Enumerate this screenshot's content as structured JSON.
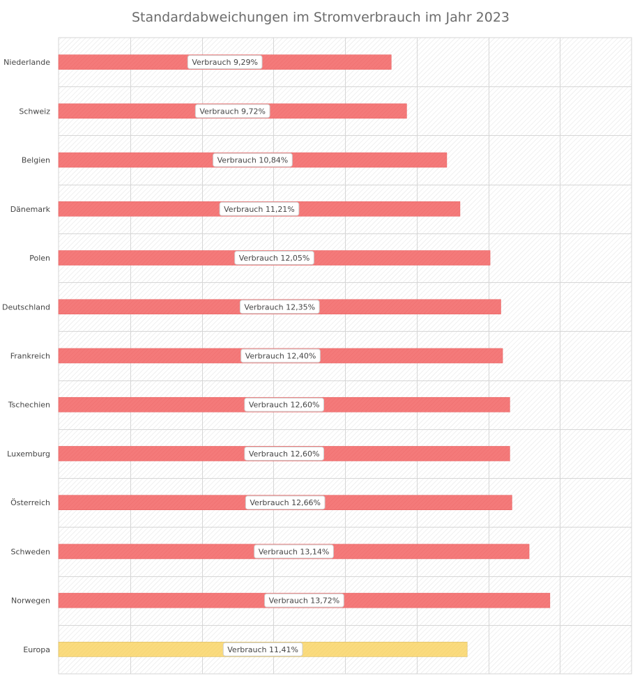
{
  "chart_data": {
    "type": "bar",
    "orientation": "horizontal",
    "title": "Standardabweichungen  im Stromverbrauch  im Jahr 2023",
    "series_label": "Verbrauch",
    "categories": [
      "Niederlande",
      "Schweiz",
      "Belgien",
      "Dänemark",
      "Polen",
      "Deutschland",
      "Frankreich",
      "Tschechien",
      "Luxemburg",
      "Österreich",
      "Schweden",
      "Norwegen",
      "Europa"
    ],
    "values": [
      9.29,
      9.72,
      10.84,
      11.21,
      12.05,
      12.35,
      12.4,
      12.6,
      12.6,
      12.66,
      13.14,
      13.72,
      11.41
    ],
    "data_labels": [
      "Verbrauch  9,29%",
      "Verbrauch  9,72%",
      "Verbrauch  10,84%",
      "Verbrauch  11,21%",
      "Verbrauch  12,05%",
      "Verbrauch  12,35%",
      "Verbrauch  12,40%",
      "Verbrauch  12,60%",
      "Verbrauch  12,60%",
      "Verbrauch  12,66%",
      "Verbrauch  13,14%",
      "Verbrauch  13,72%",
      "Verbrauch  11,41%"
    ],
    "highlight_category": "Europa",
    "xlim": [
      0,
      16
    ],
    "x_gridline_step": 2,
    "grid": true,
    "legend": "none",
    "colors": {
      "bar": "#f47a7a",
      "bar_highlight": "#fadb7e",
      "grid": "#d6d6d6",
      "background_hatch": "#e6e6e6"
    }
  }
}
